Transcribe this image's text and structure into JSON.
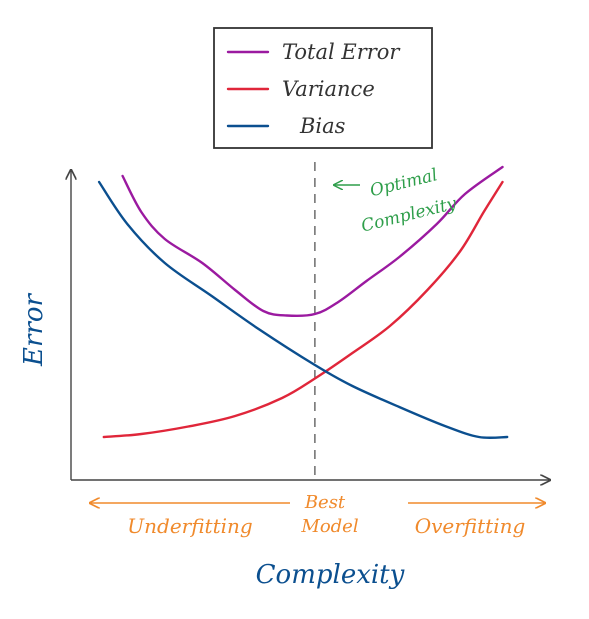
{
  "chart_data": {
    "type": "line",
    "title": "",
    "xlabel": "Complexity",
    "ylabel": "Error",
    "xlim": [
      0,
      10
    ],
    "ylim": [
      0,
      10
    ],
    "grid": false,
    "legend_placement": "top-center",
    "legend": [
      {
        "label": "Total Error",
        "color": "#9b1aa0"
      },
      {
        "label": "Variance",
        "color": "#e0263a"
      },
      {
        "label": "Bias",
        "color": "#0b4f8f"
      }
    ],
    "series": [
      {
        "name": "Total Error",
        "color": "#9b1aa0",
        "points": [
          [
            1.1,
            9.8
          ],
          [
            1.5,
            8.6
          ],
          [
            2.0,
            7.7
          ],
          [
            2.8,
            6.9
          ],
          [
            3.5,
            6.0
          ],
          [
            4.1,
            5.3
          ],
          [
            4.6,
            5.15
          ],
          [
            5.2,
            5.2
          ],
          [
            5.7,
            5.6
          ],
          [
            6.3,
            6.3
          ],
          [
            7.0,
            7.1
          ],
          [
            7.8,
            8.2
          ],
          [
            8.4,
            9.2
          ],
          [
            9.2,
            10.1
          ]
        ]
      },
      {
        "name": "Variance",
        "color": "#e0263a",
        "points": [
          [
            0.7,
            1.1
          ],
          [
            1.5,
            1.2
          ],
          [
            2.5,
            1.45
          ],
          [
            3.5,
            1.8
          ],
          [
            4.5,
            2.4
          ],
          [
            5.2,
            3.05
          ],
          [
            6.0,
            3.9
          ],
          [
            6.8,
            4.8
          ],
          [
            7.6,
            6.0
          ],
          [
            8.3,
            7.3
          ],
          [
            8.8,
            8.6
          ],
          [
            9.2,
            9.6
          ]
        ]
      },
      {
        "name": "Bias",
        "color": "#0b4f8f",
        "points": [
          [
            0.6,
            9.6
          ],
          [
            1.2,
            8.2
          ],
          [
            2.0,
            6.9
          ],
          [
            3.0,
            5.8
          ],
          [
            4.0,
            4.7
          ],
          [
            5.2,
            3.5
          ],
          [
            6.0,
            2.8
          ],
          [
            7.0,
            2.1
          ],
          [
            8.0,
            1.45
          ],
          [
            8.7,
            1.1
          ],
          [
            9.3,
            1.1
          ]
        ]
      }
    ],
    "optimal_x": 5.2,
    "annotations": {
      "optimal": "Optimal Complexity",
      "best_model": "Best Model",
      "underfitting": "Underfitting",
      "overfitting": "Overfitting"
    },
    "colors": {
      "axis": "#444444",
      "annotation_green": "#2e9e4a",
      "annotation_orange": "#f08a2c",
      "label_blue": "#0b4f8f",
      "legend_border": "#333333"
    }
  }
}
